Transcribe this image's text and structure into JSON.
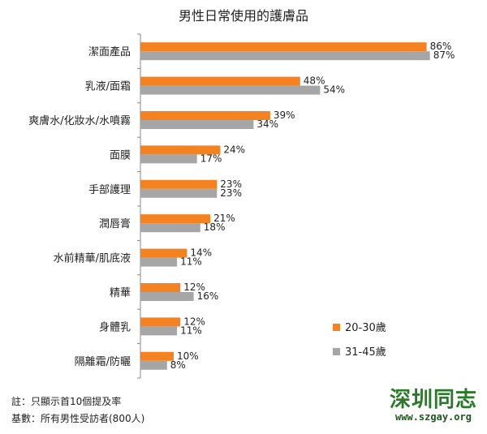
{
  "chart_data": {
    "type": "bar",
    "orientation": "horizontal",
    "title": "男性日常使用的護膚品",
    "categories": [
      "潔面產品",
      "乳液/面霜",
      "爽膚水/化妝水/水噴霧",
      "面膜",
      "手部護理",
      "潤唇膏",
      "水前精華/肌底液",
      "精華",
      "身體乳",
      "隔離霜/防曬"
    ],
    "series": [
      {
        "name": "20-30歲",
        "color": "#F58220",
        "values": [
          86,
          48,
          39,
          24,
          23,
          21,
          14,
          12,
          12,
          10
        ]
      },
      {
        "name": "31-45歲",
        "color": "#A6A6A6",
        "values": [
          87,
          54,
          34,
          17,
          23,
          18,
          11,
          16,
          11,
          8
        ]
      }
    ],
    "value_suffix": "%",
    "xlim": [
      0,
      100
    ],
    "legend_position": "right",
    "grid": false
  },
  "notes": {
    "line1": "註：只顯示首10個提及率",
    "line2": "基數：所有男性受訪者(800人)"
  },
  "watermark": {
    "text": "深圳同志",
    "url": "www.szgay.org"
  }
}
